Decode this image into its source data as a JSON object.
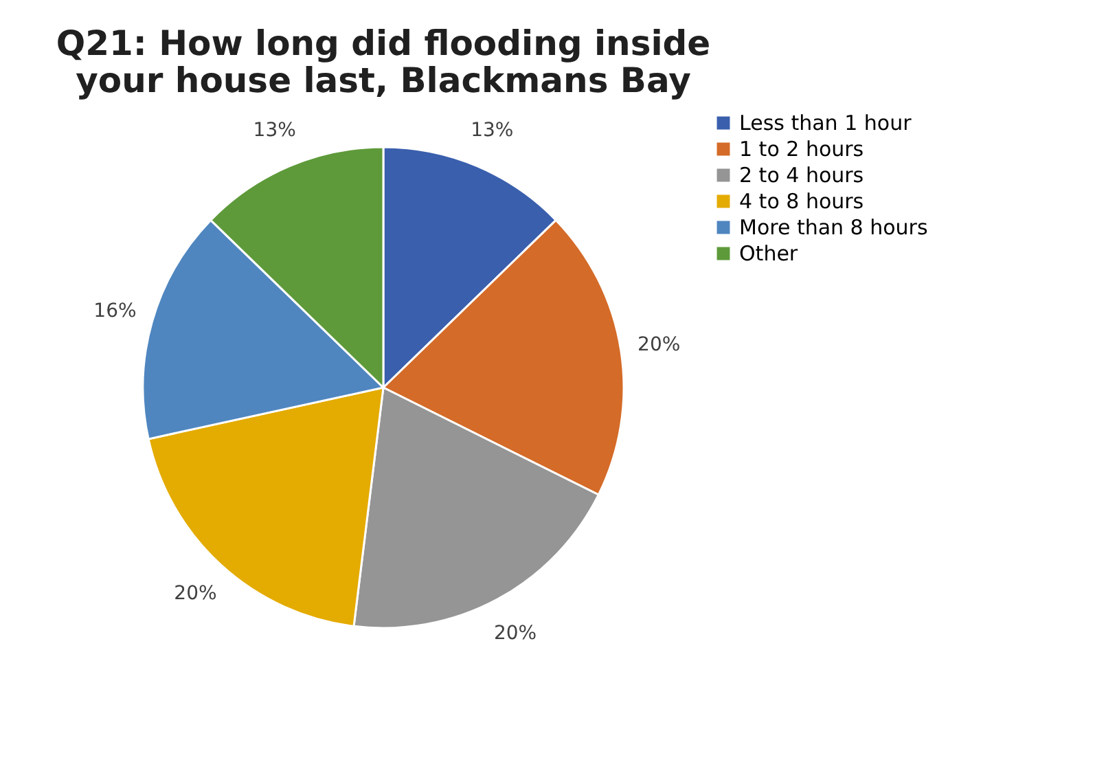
{
  "chart_data": {
    "type": "pie",
    "title": "Q21: How long did flooding inside your house last, Blackmans Bay",
    "categories": [
      "Less than 1 hour",
      "1 to 2 hours",
      "2 to 4 hours",
      "4 to 8 hours",
      "More than 8 hours",
      "Other"
    ],
    "values": [
      13,
      20,
      20,
      20,
      16,
      13
    ],
    "colors": [
      "#3a5fad",
      "#d46b28",
      "#959595",
      "#e4ab00",
      "#4f86c0",
      "#5e9a3a"
    ],
    "value_labels": [
      "13%",
      "20%",
      "20%",
      "20%",
      "16%",
      "13%"
    ],
    "legend": "right"
  }
}
